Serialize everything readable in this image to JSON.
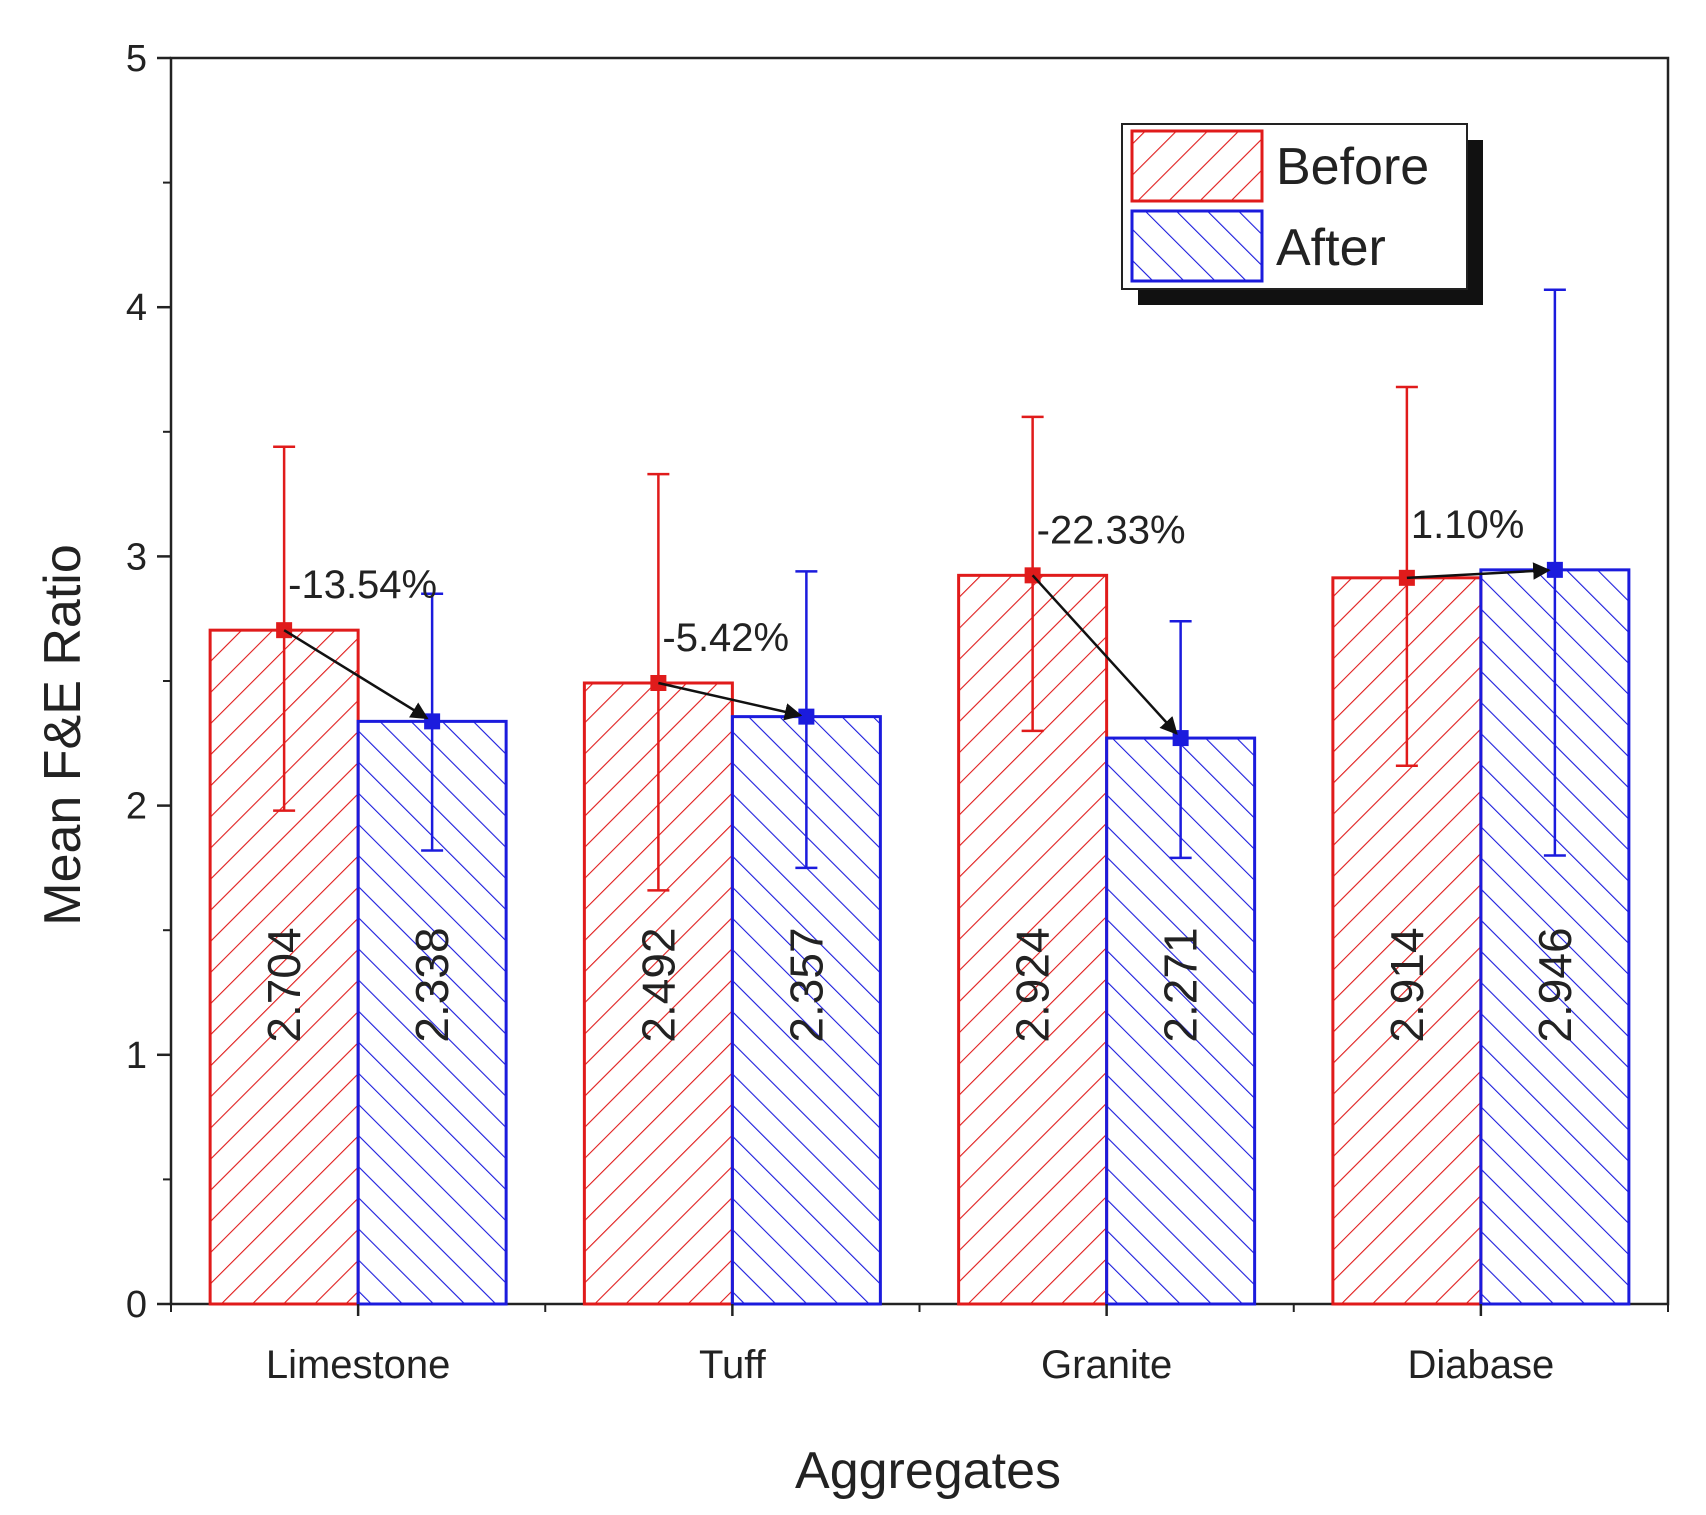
{
  "chart_data": {
    "type": "bar",
    "xlabel": "Aggregates",
    "ylabel": "Mean F&E Ratio",
    "ylim": [
      0,
      5
    ],
    "yticks": [
      0,
      1,
      2,
      3,
      4,
      5
    ],
    "categories": [
      "Limestone",
      "Tuff",
      "Granite",
      "Diabase"
    ],
    "series": [
      {
        "name": "Before",
        "color": "#e01b1b",
        "values": [
          2.704,
          2.492,
          2.924,
          2.914
        ],
        "labels": [
          "2.704",
          "2.492",
          "2.924",
          "2.914"
        ],
        "error_low": [
          1.98,
          1.66,
          2.3,
          2.16
        ],
        "error_high": [
          3.44,
          3.33,
          3.56,
          3.68
        ],
        "hatch": "forward"
      },
      {
        "name": "After",
        "color": "#1b1bdd",
        "values": [
          2.338,
          2.357,
          2.271,
          2.946
        ],
        "labels": [
          "2.338",
          "2.357",
          "2.271",
          "2.946"
        ],
        "error_low": [
          1.82,
          1.75,
          1.79,
          1.8
        ],
        "error_high": [
          2.85,
          2.94,
          2.74,
          4.07
        ],
        "hatch": "backward"
      }
    ],
    "changes": [
      "-13.54%",
      "-5.42%",
      "-22.33%",
      "1.10%"
    ],
    "legend_position": "top-right"
  }
}
